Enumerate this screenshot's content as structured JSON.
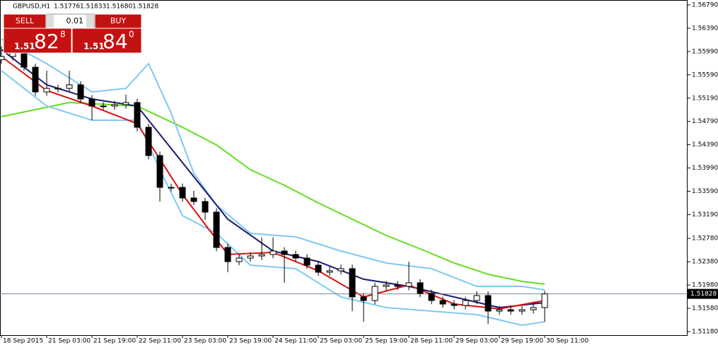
{
  "chart_data": {
    "type": "candlestick",
    "title": "GBPUSD,H1",
    "header_quotes": [
      "1.51776",
      "1.51833",
      "1.51680",
      "1.51828"
    ],
    "trade_panel": {
      "sell": "SELL",
      "buy": "BUY",
      "lot": "0.01",
      "sell_price": {
        "big": "1.51",
        "pips": "82",
        "point": "8"
      },
      "buy_price": {
        "big": "1.51",
        "pips": "84",
        "point": "0"
      }
    },
    "current_price": {
      "value": 1.51828,
      "label": "1.51828"
    },
    "xlim": [
      -0.125,
      60.625
    ],
    "xticks": [
      {
        "value": 0,
        "label": "18 Sep 2015"
      },
      {
        "value": 4,
        "label": "21 Sep 03:00"
      },
      {
        "value": 8,
        "label": "21 Sep 19:00"
      },
      {
        "value": 12,
        "label": "22 Sep 11:00"
      },
      {
        "value": 16,
        "label": "23 Sep 03:00"
      },
      {
        "value": 20,
        "label": "23 Sep 19:00"
      },
      {
        "value": 24,
        "label": "24 Sep 11:00"
      },
      {
        "value": 28,
        "label": "25 Sep 03:00"
      },
      {
        "value": 32,
        "label": "25 Sep 19:00"
      },
      {
        "value": 36,
        "label": "28 Sep 11:00"
      },
      {
        "value": 40,
        "label": "29 Sep 03:00"
      },
      {
        "value": 44,
        "label": "29 Sep 19:00"
      },
      {
        "value": 48,
        "label": "30 Sep 11:00"
      }
    ],
    "ylim": [
      1.51119,
      1.56875
    ],
    "yticks": [
      {
        "value": 1.5679,
        "label": "1.56790"
      },
      {
        "value": 1.5639,
        "label": "1.56390"
      },
      {
        "value": 1.5599,
        "label": "1.55990"
      },
      {
        "value": 1.5559,
        "label": "1.55590"
      },
      {
        "value": 1.5519,
        "label": "1.55190"
      },
      {
        "value": 1.5479,
        "label": "1.54790"
      },
      {
        "value": 1.5439,
        "label": "1.54390"
      },
      {
        "value": 1.5399,
        "label": "1.53990"
      },
      {
        "value": 1.5359,
        "label": "1.53590"
      },
      {
        "value": 1.5319,
        "label": "1.53190"
      },
      {
        "value": 1.5278,
        "label": "1.52780"
      },
      {
        "value": 1.5238,
        "label": "1.52380"
      },
      {
        "value": 1.5198,
        "label": "1.51980"
      },
      {
        "value": 1.5158,
        "label": "1.51580"
      },
      {
        "value": 1.5118,
        "label": "1.51180"
      }
    ],
    "open": [
      1.5585,
      1.55904,
      1.55964,
      1.55721,
      1.55296,
      1.55357,
      1.55357,
      1.55418,
      1.55175,
      1.55054,
      1.55054,
      1.55078,
      1.55114,
      1.54689,
      1.54204,
      1.53657,
      1.53657,
      1.53475,
      1.53414,
      1.53232,
      1.52625,
      1.52382,
      1.52443,
      1.52479,
      1.52504,
      1.52564,
      1.52504,
      1.52443,
      1.52321,
      1.522,
      1.52224,
      1.52261,
      1.51775,
      1.51714,
      1.51957,
      1.51981,
      1.51957,
      1.52018,
      1.51836,
      1.51714,
      1.51653,
      1.51629,
      1.51714,
      1.51799,
      1.51532,
      1.51556,
      1.51532,
      1.51556,
      1.51593
    ],
    "high": [
      1.5608,
      1.5603,
      1.5602,
      1.5578,
      1.55661,
      1.5542,
      1.55661,
      1.5548,
      1.5524,
      1.5512,
      1.5514,
      1.5525,
      1.5518,
      1.5475,
      1.5427,
      1.5372,
      1.5372,
      1.536,
      1.5348,
      1.533,
      1.5269,
      1.5251,
      1.5254,
      1.528,
      1.528,
      1.5263,
      1.5257,
      1.5251,
      1.5239,
      1.5229,
      1.5233,
      1.5233,
      1.5184,
      1.5202,
      1.5205,
      1.5205,
      1.5238,
      1.5208,
      1.519,
      1.5178,
      1.5172,
      1.5178,
      1.5187,
      1.5187,
      1.5162,
      1.5162,
      1.5162,
      1.5166,
      1.5188
    ],
    "low": [
      1.5578,
      1.5584,
      1.5566,
      1.5523,
      1.5523,
      1.5529,
      1.5529,
      1.5511,
      1.5481,
      1.5499,
      1.5499,
      1.5501,
      1.5462,
      1.5414,
      1.53414,
      1.5359,
      1.5341,
      1.5335,
      1.531,
      1.5256,
      1.522,
      1.5232,
      1.5238,
      1.5241,
      1.5244,
      1.5202,
      1.5238,
      1.5226,
      1.5214,
      1.5214,
      1.5216,
      1.5153,
      1.5135,
      1.5165,
      1.5189,
      1.5189,
      1.5189,
      1.5177,
      1.5165,
      1.5159,
      1.5156,
      1.5156,
      1.5165,
      1.5131,
      1.5147,
      1.5147,
      1.5147,
      1.5149,
      1.5135
    ],
    "close": [
      1.55904,
      1.55964,
      1.55721,
      1.55296,
      1.55357,
      1.55357,
      1.55418,
      1.55175,
      1.55054,
      1.55054,
      1.55078,
      1.55114,
      1.54689,
      1.54204,
      1.53657,
      1.53657,
      1.53475,
      1.53414,
      1.53232,
      1.52625,
      1.52382,
      1.52443,
      1.52479,
      1.52504,
      1.52564,
      1.52504,
      1.52443,
      1.52321,
      1.522,
      1.52224,
      1.52261,
      1.51775,
      1.51714,
      1.51957,
      1.51981,
      1.51957,
      1.52018,
      1.51836,
      1.51714,
      1.51653,
      1.51629,
      1.51714,
      1.51799,
      1.51532,
      1.51556,
      1.51532,
      1.51556,
      1.51593,
      1.51828
    ],
    "series": [
      {
        "color": "#66dd22",
        "x": [
          0,
          6,
          12,
          16,
          19,
          22,
          25,
          28,
          31,
          34,
          37,
          40,
          43,
          46,
          48
        ],
        "values": [
          1.54871,
          1.55114,
          1.55054,
          1.54689,
          1.54386,
          1.53961,
          1.53694,
          1.5339,
          1.53111,
          1.52831,
          1.52601,
          1.52358,
          1.52164,
          1.52042,
          1.51994
        ]
      },
      {
        "color": "#80c8f0",
        "x": [
          0,
          4,
          8,
          11,
          13,
          15,
          17,
          19,
          22,
          26,
          30,
          34,
          38,
          42,
          46,
          48
        ],
        "values": [
          1.56207,
          1.55782,
          1.55296,
          1.55357,
          1.55782,
          1.54932,
          1.539,
          1.53354,
          1.52868,
          1.52807,
          1.52564,
          1.52358,
          1.52261,
          1.51957,
          1.51957,
          1.51896
        ]
      },
      {
        "color": "#80c8f0",
        "x": [
          0,
          4,
          8,
          12,
          14,
          16,
          19,
          22,
          26,
          30,
          34,
          38,
          42,
          46,
          48
        ],
        "values": [
          1.55661,
          1.55054,
          1.54811,
          1.54811,
          1.53961,
          1.53171,
          1.52868,
          1.52321,
          1.52261,
          1.51775,
          1.51593,
          1.51532,
          1.51471,
          1.51289,
          1.5135
        ]
      },
      {
        "color": "#1a1a70",
        "x": [
          0,
          4,
          8,
          12,
          16,
          20,
          24,
          28,
          32,
          36,
          40,
          44,
          48
        ],
        "values": [
          1.56025,
          1.55418,
          1.55175,
          1.55054,
          1.54082,
          1.53111,
          1.52564,
          1.52382,
          1.52079,
          1.51957,
          1.51775,
          1.51593,
          1.51678
        ]
      },
      {
        "color": "#dd1010",
        "x": [
          0,
          4,
          8,
          12,
          16,
          20,
          24,
          28,
          32,
          36,
          40,
          44,
          48
        ],
        "values": [
          1.55904,
          1.55321,
          1.55054,
          1.5475,
          1.53536,
          1.52504,
          1.5254,
          1.52224,
          1.51775,
          1.51981,
          1.51653,
          1.51569,
          1.51714
        ]
      }
    ]
  }
}
